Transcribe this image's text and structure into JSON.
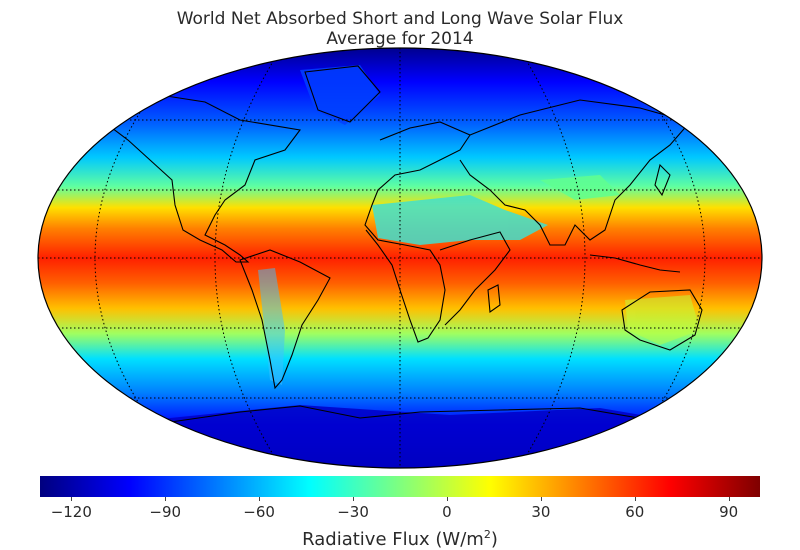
{
  "title": "World Net Absorbed Short and Long Wave Solar Flux",
  "subtitle": "Average for 2014",
  "projection": "robinson-like oval",
  "graticule": {
    "parallels_deg": [
      -60,
      -30,
      0,
      30,
      60
    ],
    "meridians_deg": [
      -120,
      -60,
      0,
      60,
      120
    ],
    "style": "dotted"
  },
  "colormap": "jet",
  "colorbar": {
    "min": -130,
    "max": 100,
    "ticks": [
      "−120",
      "−90",
      "−60",
      "−30",
      "0",
      "30",
      "60",
      "90"
    ],
    "tick_values": [
      -120,
      -90,
      -60,
      -30,
      0,
      30,
      60,
      90
    ],
    "label_text": "Radiative Flux (W/m",
    "label_sup": "2",
    "label_close": ")"
  },
  "colors": {
    "jet": [
      "#00007f",
      "#0000ff",
      "#007fff",
      "#00ffff",
      "#7fff7f",
      "#ffff00",
      "#ff7f00",
      "#ff0000",
      "#7f0000"
    ]
  }
}
